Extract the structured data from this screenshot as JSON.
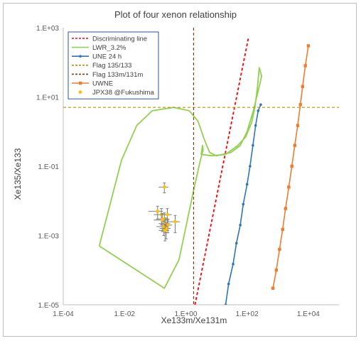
{
  "chart_data": {
    "type": "scatter",
    "title": "Plot of four xenon relationship",
    "xlabel": "Xe133m/Xe131m",
    "ylabel": "Xe135/Xe133",
    "xscale": "log",
    "yscale": "log",
    "xlim": [
      0.0001,
      100000
    ],
    "ylim": [
      1e-05,
      1000
    ],
    "x_ticks": [
      {
        "value": 0.0001,
        "label": "1.E-04"
      },
      {
        "value": 0.01,
        "label": "1.E-02"
      },
      {
        "value": 1,
        "label": "1.E+00"
      },
      {
        "value": 100,
        "label": "1.E+02"
      },
      {
        "value": 10000,
        "label": "1.E+04"
      }
    ],
    "y_ticks": [
      {
        "value": 1e-05,
        "label": "1.E-05"
      },
      {
        "value": 0.001,
        "label": "1.E-03"
      },
      {
        "value": 0.1,
        "label": "1.E-01"
      },
      {
        "value": 10,
        "label": "1.E+01"
      },
      {
        "value": 1000,
        "label": "1.E+03"
      }
    ],
    "grid": false,
    "legend_position": "top-left",
    "series": [
      {
        "name": "Discriminating line",
        "kind": "line",
        "style": "dashed",
        "color": "#ff0000",
        "points": [
          [
            2,
            1e-05
          ],
          [
            110,
            500
          ]
        ]
      },
      {
        "name": "LWR_3.2%",
        "kind": "line",
        "style": "solid",
        "color": "#92d050",
        "points": [
          [
            0.0015,
            0.0005
          ],
          [
            0.008,
            0.15
          ],
          [
            0.025,
            1.5
          ],
          [
            0.08,
            4
          ],
          [
            0.4,
            5
          ],
          [
            1.3,
            4
          ],
          [
            2.5,
            2
          ],
          [
            4,
            0.6
          ],
          [
            6,
            0.25
          ],
          [
            10,
            0.2
          ],
          [
            30,
            0.25
          ],
          [
            60,
            0.4
          ],
          [
            100,
            1
          ],
          [
            160,
            4
          ],
          [
            250,
            20
          ],
          [
            300,
            40
          ],
          [
            250,
            70
          ],
          [
            220,
            20
          ],
          [
            180,
            5
          ],
          [
            140,
            1.8
          ],
          [
            90,
            0.7
          ],
          [
            50,
            0.4
          ],
          [
            20,
            0.22
          ],
          [
            7,
            0.2
          ],
          [
            3.2,
            0.22
          ],
          [
            3.5,
            0.4
          ],
          [
            3.7,
            0.3
          ],
          [
            3,
            0.15
          ],
          [
            1.8,
            0.02
          ],
          [
            0.6,
            0.0002
          ],
          [
            0.2,
            3e-05
          ],
          [
            0.0015,
            0.0005
          ]
        ]
      },
      {
        "name": "UNE 24 h",
        "kind": "line-markers",
        "style": "solid",
        "color": "#2e75b6",
        "points": [
          [
            20,
            1e-05
          ],
          [
            25,
            4e-05
          ],
          [
            35,
            0.00015
          ],
          [
            45,
            0.0006
          ],
          [
            60,
            0.002
          ],
          [
            75,
            0.008
          ],
          [
            100,
            0.03
          ],
          [
            125,
            0.1
          ],
          [
            155,
            0.4
          ],
          [
            190,
            1.5
          ],
          [
            230,
            4
          ],
          [
            280,
            6
          ]
        ]
      },
      {
        "name": "Flag 135/133",
        "kind": "hline",
        "style": "dashed",
        "color": "#bf8f00",
        "value": 5
      },
      {
        "name": "Flag 133m/131m",
        "kind": "vline",
        "style": "dashed",
        "color": "#843c0c",
        "value": 1.8
      },
      {
        "name": "UWNE",
        "kind": "line-markers",
        "style": "solid",
        "color": "#ed7d31",
        "points": [
          [
            700,
            3e-05
          ],
          [
            900,
            0.0001
          ],
          [
            1150,
            0.0004
          ],
          [
            1450,
            0.0015
          ],
          [
            1800,
            0.006
          ],
          [
            2300,
            0.025
          ],
          [
            2900,
            0.1
          ],
          [
            3600,
            0.4
          ],
          [
            4500,
            1.5
          ],
          [
            5500,
            6
          ],
          [
            6500,
            20
          ],
          [
            8000,
            80
          ],
          [
            10000,
            300
          ]
        ]
      },
      {
        "name": "JPX38 @Fukushima",
        "kind": "scatter-errorbars",
        "color": "#ffc000",
        "points": [
          {
            "x": 0.2,
            "y": 0.025,
            "xerr": 0.07,
            "yerr": 0.008
          },
          {
            "x": 0.12,
            "y": 0.005,
            "xerr": 0.06,
            "yerr": 0.002
          },
          {
            "x": 0.16,
            "y": 0.004,
            "xerr": 0.07,
            "yerr": 0.002
          },
          {
            "x": 0.25,
            "y": 0.004,
            "xerr": 0.1,
            "yerr": 0.002
          },
          {
            "x": 0.2,
            "y": 0.003,
            "xerr": 0.09,
            "yerr": 0.0015
          },
          {
            "x": 0.17,
            "y": 0.0028,
            "xerr": 0.08,
            "yerr": 0.0015
          },
          {
            "x": 0.45,
            "y": 0.0025,
            "xerr": 0.2,
            "yerr": 0.0013
          },
          {
            "x": 0.22,
            "y": 0.0022,
            "xerr": 0.09,
            "yerr": 0.001
          },
          {
            "x": 0.26,
            "y": 0.002,
            "xerr": 0.1,
            "yerr": 0.0008
          },
          {
            "x": 0.19,
            "y": 0.0018,
            "xerr": 0.08,
            "yerr": 0.0008
          },
          {
            "x": 0.23,
            "y": 0.0016,
            "xerr": 0.09,
            "yerr": 0.0008
          },
          {
            "x": 0.21,
            "y": 0.0014,
            "xerr": 0.08,
            "yerr": 0.0007
          }
        ]
      }
    ]
  }
}
